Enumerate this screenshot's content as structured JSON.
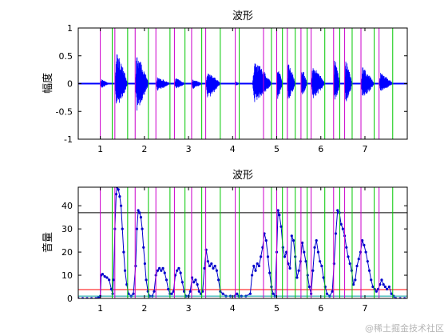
{
  "watermark": "@稀土掘金技术社区",
  "colors": {
    "signal": "#0000ff",
    "segment_start": "#cc00cc",
    "segment_end": "#00c800",
    "upper_threshold": "#000000",
    "lower_threshold": "#ff0000",
    "baseline_series": "#00a0a0",
    "axes": "#000000"
  },
  "chart_data": [
    {
      "type": "line",
      "title": "波形",
      "ylabel": "幅度",
      "xlim": [
        0.5,
        7.96
      ],
      "ylim": [
        -1,
        1
      ],
      "xticks": [
        1,
        2,
        3,
        4,
        5,
        6,
        7
      ],
      "yticks": [
        -1,
        -0.5,
        0,
        0.5,
        1
      ],
      "yticklabels": [
        "-1",
        "-0.5",
        "0",
        "0.5",
        "1"
      ],
      "grid": false,
      "segment_starts": [
        1.0,
        1.33,
        1.79,
        2.26,
        2.68,
        3.07,
        3.39,
        4.06,
        4.7,
        5.0,
        5.24,
        5.55,
        5.78,
        6.29,
        6.54,
        6.91,
        7.32
      ],
      "segment_ends": [
        1.27,
        1.62,
        2.09,
        2.58,
        2.92,
        3.3,
        3.72,
        4.15,
        4.88,
        5.13,
        5.42,
        5.69,
        6.09,
        6.43,
        6.71,
        7.21,
        7.63
      ],
      "bursts": [
        {
          "x_start": 1.0,
          "x_end": 1.2,
          "max": 0.08,
          "min": -0.08
        },
        {
          "x_start": 1.33,
          "x_end": 1.62,
          "max": 0.58,
          "min": -0.45
        },
        {
          "x_start": 1.79,
          "x_end": 2.09,
          "max": 0.55,
          "min": -0.5
        },
        {
          "x_start": 2.26,
          "x_end": 2.58,
          "max": 0.12,
          "min": -0.13
        },
        {
          "x_start": 2.68,
          "x_end": 2.92,
          "max": 0.1,
          "min": -0.1
        },
        {
          "x_start": 3.07,
          "x_end": 3.3,
          "max": 0.08,
          "min": -0.1
        },
        {
          "x_start": 3.39,
          "x_end": 3.72,
          "max": 0.22,
          "min": -0.28
        },
        {
          "x_start": 4.06,
          "x_end": 4.15,
          "max": 0.04,
          "min": -0.04
        },
        {
          "x_start": 4.45,
          "x_end": 4.88,
          "max": 0.42,
          "min": -0.35
        },
        {
          "x_start": 5.0,
          "x_end": 5.13,
          "max": 0.35,
          "min": -0.3
        },
        {
          "x_start": 5.24,
          "x_end": 5.42,
          "max": 0.4,
          "min": -0.32
        },
        {
          "x_start": 5.55,
          "x_end": 5.69,
          "max": 0.3,
          "min": -0.25
        },
        {
          "x_start": 5.78,
          "x_end": 6.09,
          "max": 0.33,
          "min": -0.28
        },
        {
          "x_start": 6.29,
          "x_end": 6.43,
          "max": 0.48,
          "min": -0.4
        },
        {
          "x_start": 6.54,
          "x_end": 6.71,
          "max": 0.45,
          "min": -0.4
        },
        {
          "x_start": 6.91,
          "x_end": 7.21,
          "max": 0.3,
          "min": -0.28
        },
        {
          "x_start": 7.32,
          "x_end": 7.63,
          "max": 0.2,
          "min": -0.15
        }
      ]
    },
    {
      "type": "line",
      "title": "波形",
      "ylabel": "音量",
      "xlim": [
        0.5,
        7.96
      ],
      "ylim": [
        0,
        48
      ],
      "xticks": [
        1,
        2,
        3,
        4,
        5,
        6,
        7
      ],
      "yticks": [
        0,
        10,
        20,
        30,
        40
      ],
      "yticklabels": [
        "0",
        "10",
        "20",
        "30",
        "40"
      ],
      "grid": false,
      "segment_starts": [
        1.0,
        1.33,
        1.79,
        2.26,
        2.68,
        3.07,
        3.39,
        4.06,
        4.7,
        5.0,
        5.24,
        5.55,
        5.78,
        6.29,
        6.54,
        6.91,
        7.32
      ],
      "segment_ends": [
        1.27,
        1.62,
        2.09,
        2.58,
        2.92,
        3.3,
        3.72,
        4.15,
        4.88,
        5.13,
        5.42,
        5.69,
        6.09,
        6.43,
        6.71,
        7.21,
        7.63
      ],
      "hlines": [
        {
          "y": 37,
          "color": "#000000"
        },
        {
          "y": 3.8,
          "color": "#ff0000"
        }
      ],
      "series": [
        {
          "color": "#0000cc",
          "markers": true,
          "x": [
            0.5,
            0.6,
            0.7,
            0.8,
            0.9,
            0.96,
            1.0,
            1.02,
            1.05,
            1.1,
            1.15,
            1.2,
            1.25,
            1.28,
            1.3,
            1.33,
            1.36,
            1.38,
            1.41,
            1.44,
            1.47,
            1.5,
            1.53,
            1.56,
            1.6,
            1.64,
            1.7,
            1.75,
            1.8,
            1.83,
            1.86,
            1.89,
            1.92,
            1.95,
            1.98,
            2.01,
            2.04,
            2.08,
            2.12,
            2.18,
            2.22,
            2.26,
            2.3,
            2.34,
            2.38,
            2.42,
            2.46,
            2.5,
            2.54,
            2.58,
            2.62,
            2.66,
            2.7,
            2.74,
            2.78,
            2.82,
            2.86,
            2.9,
            2.94,
            3.0,
            3.04,
            3.08,
            3.12,
            3.16,
            3.2,
            3.24,
            3.28,
            3.32,
            3.36,
            3.4,
            3.44,
            3.48,
            3.52,
            3.56,
            3.6,
            3.64,
            3.68,
            3.72,
            3.78,
            3.85,
            3.95,
            4.05,
            4.1,
            4.14,
            4.2,
            4.3,
            4.4,
            4.44,
            4.48,
            4.52,
            4.56,
            4.6,
            4.64,
            4.68,
            4.72,
            4.76,
            4.8,
            4.84,
            4.88,
            4.92,
            4.96,
            5.0,
            5.03,
            5.06,
            5.1,
            5.14,
            5.18,
            5.22,
            5.26,
            5.3,
            5.34,
            5.38,
            5.42,
            5.46,
            5.5,
            5.54,
            5.58,
            5.62,
            5.66,
            5.7,
            5.74,
            5.78,
            5.82,
            5.86,
            5.9,
            5.94,
            5.98,
            6.02,
            6.06,
            6.1,
            6.14,
            6.2,
            6.26,
            6.3,
            6.34,
            6.38,
            6.42,
            6.46,
            6.5,
            6.54,
            6.58,
            6.62,
            6.66,
            6.7,
            6.74,
            6.78,
            6.82,
            6.86,
            6.9,
            6.94,
            6.98,
            7.02,
            7.06,
            7.1,
            7.14,
            7.18,
            7.22,
            7.26,
            7.3,
            7.34,
            7.38,
            7.42,
            7.46,
            7.5,
            7.55,
            7.6,
            7.65,
            7.7,
            7.8,
            7.9
          ],
          "y": [
            0,
            0,
            0,
            0,
            0,
            0.5,
            1,
            10,
            10.5,
            9.5,
            9,
            8,
            4,
            2,
            8,
            30,
            45,
            48,
            47,
            44,
            40,
            30,
            20,
            12,
            6,
            2,
            1,
            2,
            14,
            30,
            38,
            37,
            35,
            30,
            22,
            15,
            8,
            3,
            1,
            1,
            3,
            10,
            12,
            13,
            12,
            13,
            11,
            8,
            4,
            2,
            2,
            3,
            10,
            12,
            13,
            11,
            7,
            3,
            1,
            1,
            3,
            9,
            7,
            8,
            6,
            3,
            2,
            3,
            13,
            21,
            16,
            14,
            15,
            13,
            14,
            12,
            8,
            3,
            2,
            1,
            1,
            1,
            2,
            1,
            1,
            1,
            2,
            10,
            14,
            12,
            15,
            14,
            18,
            22,
            28,
            25,
            18,
            11,
            5,
            2,
            1,
            20,
            38,
            36,
            31,
            22,
            18,
            20,
            15,
            13,
            27,
            25,
            18,
            9,
            12,
            16,
            24,
            20,
            16,
            10,
            5,
            2,
            12,
            22,
            25,
            20,
            16,
            14,
            9,
            5,
            2,
            1,
            3,
            15,
            28,
            38,
            37,
            32,
            30,
            27,
            22,
            18,
            15,
            12,
            6,
            8,
            14,
            17,
            20,
            25,
            23,
            20,
            16,
            12,
            8,
            5,
            4,
            3,
            4,
            6,
            8,
            6,
            5,
            4,
            5,
            2,
            1,
            0,
            0,
            0
          ]
        },
        {
          "color": "#00a0a0",
          "markers": false,
          "x": [
            0.5,
            7.96
          ],
          "y": [
            1,
            1
          ]
        }
      ]
    }
  ]
}
